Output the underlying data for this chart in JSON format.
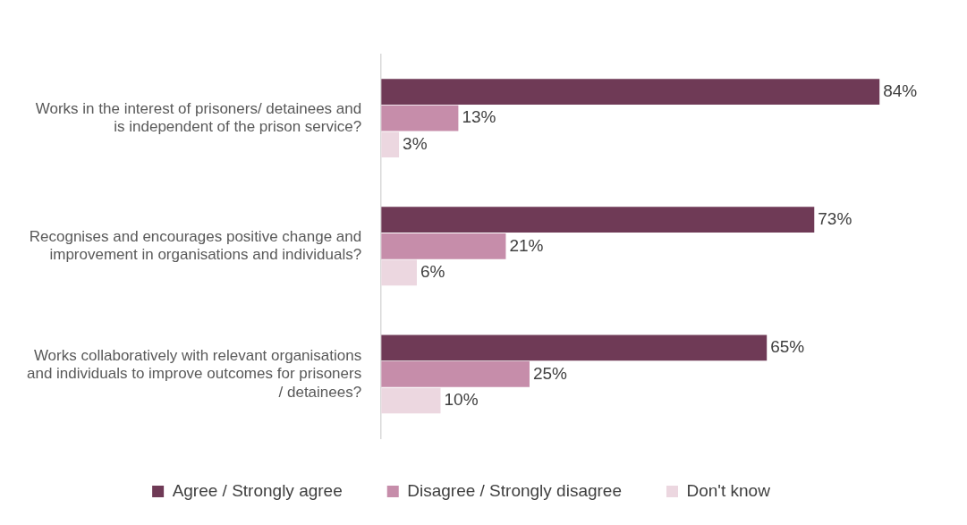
{
  "chart_data": {
    "type": "bar",
    "orientation": "horizontal",
    "categories": [
      "Works in the interest of prisoners/ detainees and is independent of the prison service?",
      "Recognises and encourages positive change and improvement in organisations and individuals?",
      "Works collaboratively with relevant organisations and individuals to improve outcomes for prisoners / detainees?"
    ],
    "series": [
      {
        "name": "Agree / Strongly agree",
        "color": "#6f3a56",
        "values": [
          84,
          73,
          65
        ],
        "value_labels": [
          "84%",
          "73%",
          "65%"
        ]
      },
      {
        "name": "Disagree / Strongly disagree",
        "color": "#c68daa",
        "values": [
          13,
          21,
          25
        ],
        "value_labels": [
          "13%",
          "21%",
          "25%"
        ]
      },
      {
        "name": "Don't know",
        "color": "#ecd7e0",
        "values": [
          3,
          6,
          10
        ],
        "value_labels": [
          "3%",
          "6%",
          "10%"
        ]
      }
    ],
    "grid": false,
    "legend": "bottom"
  }
}
